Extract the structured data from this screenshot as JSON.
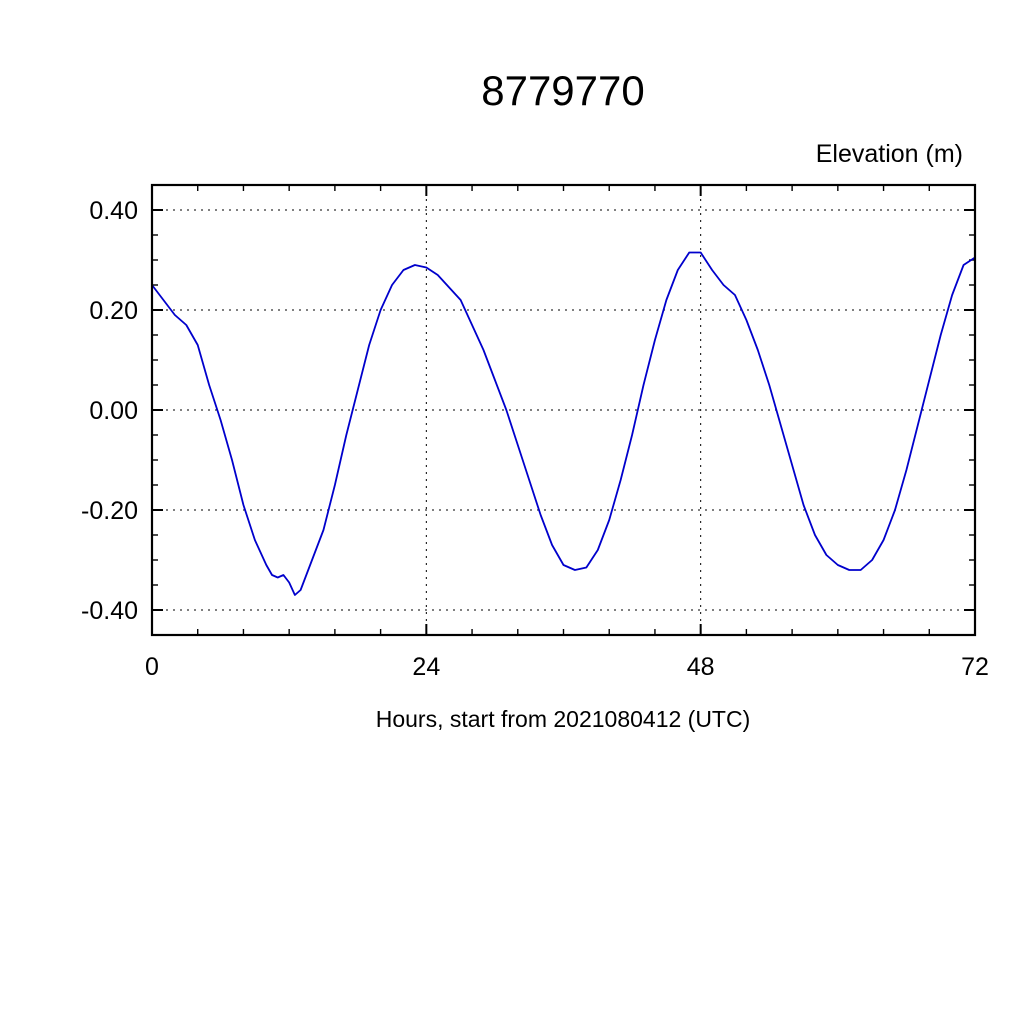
{
  "chart": {
    "title": "8779770",
    "ylabel": "Elevation (m)",
    "xlabel": "Hours, start from 2021080412 (UTC)"
  },
  "chart_data": {
    "type": "line",
    "title": "8779770",
    "xlabel": "Hours, start from 2021080412 (UTC)",
    "ylabel": "Elevation (m)",
    "xlim": [
      0,
      72
    ],
    "ylim": [
      -0.45,
      0.45
    ],
    "xticks": [
      0,
      24,
      48,
      72
    ],
    "xtick_labels": [
      "0",
      "24",
      "48",
      "72"
    ],
    "yticks": [
      -0.4,
      -0.2,
      0.0,
      0.2,
      0.4
    ],
    "ytick_labels": [
      "-0.40",
      "-0.20",
      "0.00",
      "0.20",
      "0.40"
    ],
    "x_minor_step": 4,
    "y_minor_step": 0.05,
    "grid_x": [
      24,
      48
    ],
    "grid_y": [
      -0.4,
      -0.2,
      0.0,
      0.2,
      0.4
    ],
    "grid_on": true,
    "legend": "none",
    "line_color": "#0000cc",
    "frame_color": "#000000",
    "series": [
      {
        "name": "elevation",
        "x": [
          0,
          1,
          2,
          3,
          4,
          5,
          6,
          7,
          8,
          9,
          10,
          10.5,
          11,
          11.5,
          12,
          12.5,
          13,
          14,
          15,
          16,
          17,
          18,
          19,
          20,
          21,
          22,
          23,
          24,
          25,
          26,
          27,
          28,
          29,
          30,
          31,
          32,
          33,
          34,
          35,
          36,
          37,
          38,
          39,
          40,
          41,
          42,
          43,
          44,
          45,
          46,
          47,
          48,
          49,
          50,
          51,
          52,
          53,
          54,
          55,
          56,
          57,
          58,
          59,
          60,
          61,
          62,
          63,
          64,
          65,
          66,
          67,
          68,
          69,
          70,
          71,
          72
        ],
        "y": [
          0.25,
          0.22,
          0.19,
          0.17,
          0.13,
          0.05,
          -0.02,
          -0.1,
          -0.19,
          -0.26,
          -0.31,
          -0.33,
          -0.335,
          -0.33,
          -0.345,
          -0.37,
          -0.36,
          -0.3,
          -0.24,
          -0.15,
          -0.05,
          0.04,
          0.13,
          0.2,
          0.25,
          0.28,
          0.29,
          0.285,
          0.27,
          0.245,
          0.22,
          0.17,
          0.12,
          0.06,
          0.0,
          -0.07,
          -0.14,
          -0.21,
          -0.27,
          -0.31,
          -0.32,
          -0.315,
          -0.28,
          -0.22,
          -0.14,
          -0.05,
          0.05,
          0.14,
          0.22,
          0.28,
          0.315,
          0.315,
          0.28,
          0.25,
          0.23,
          0.18,
          0.12,
          0.05,
          -0.03,
          -0.11,
          -0.19,
          -0.25,
          -0.29,
          -0.31,
          -0.32,
          -0.32,
          -0.3,
          -0.26,
          -0.2,
          -0.12,
          -0.03,
          0.06,
          0.15,
          0.23,
          0.29,
          0.305
        ]
      }
    ]
  }
}
